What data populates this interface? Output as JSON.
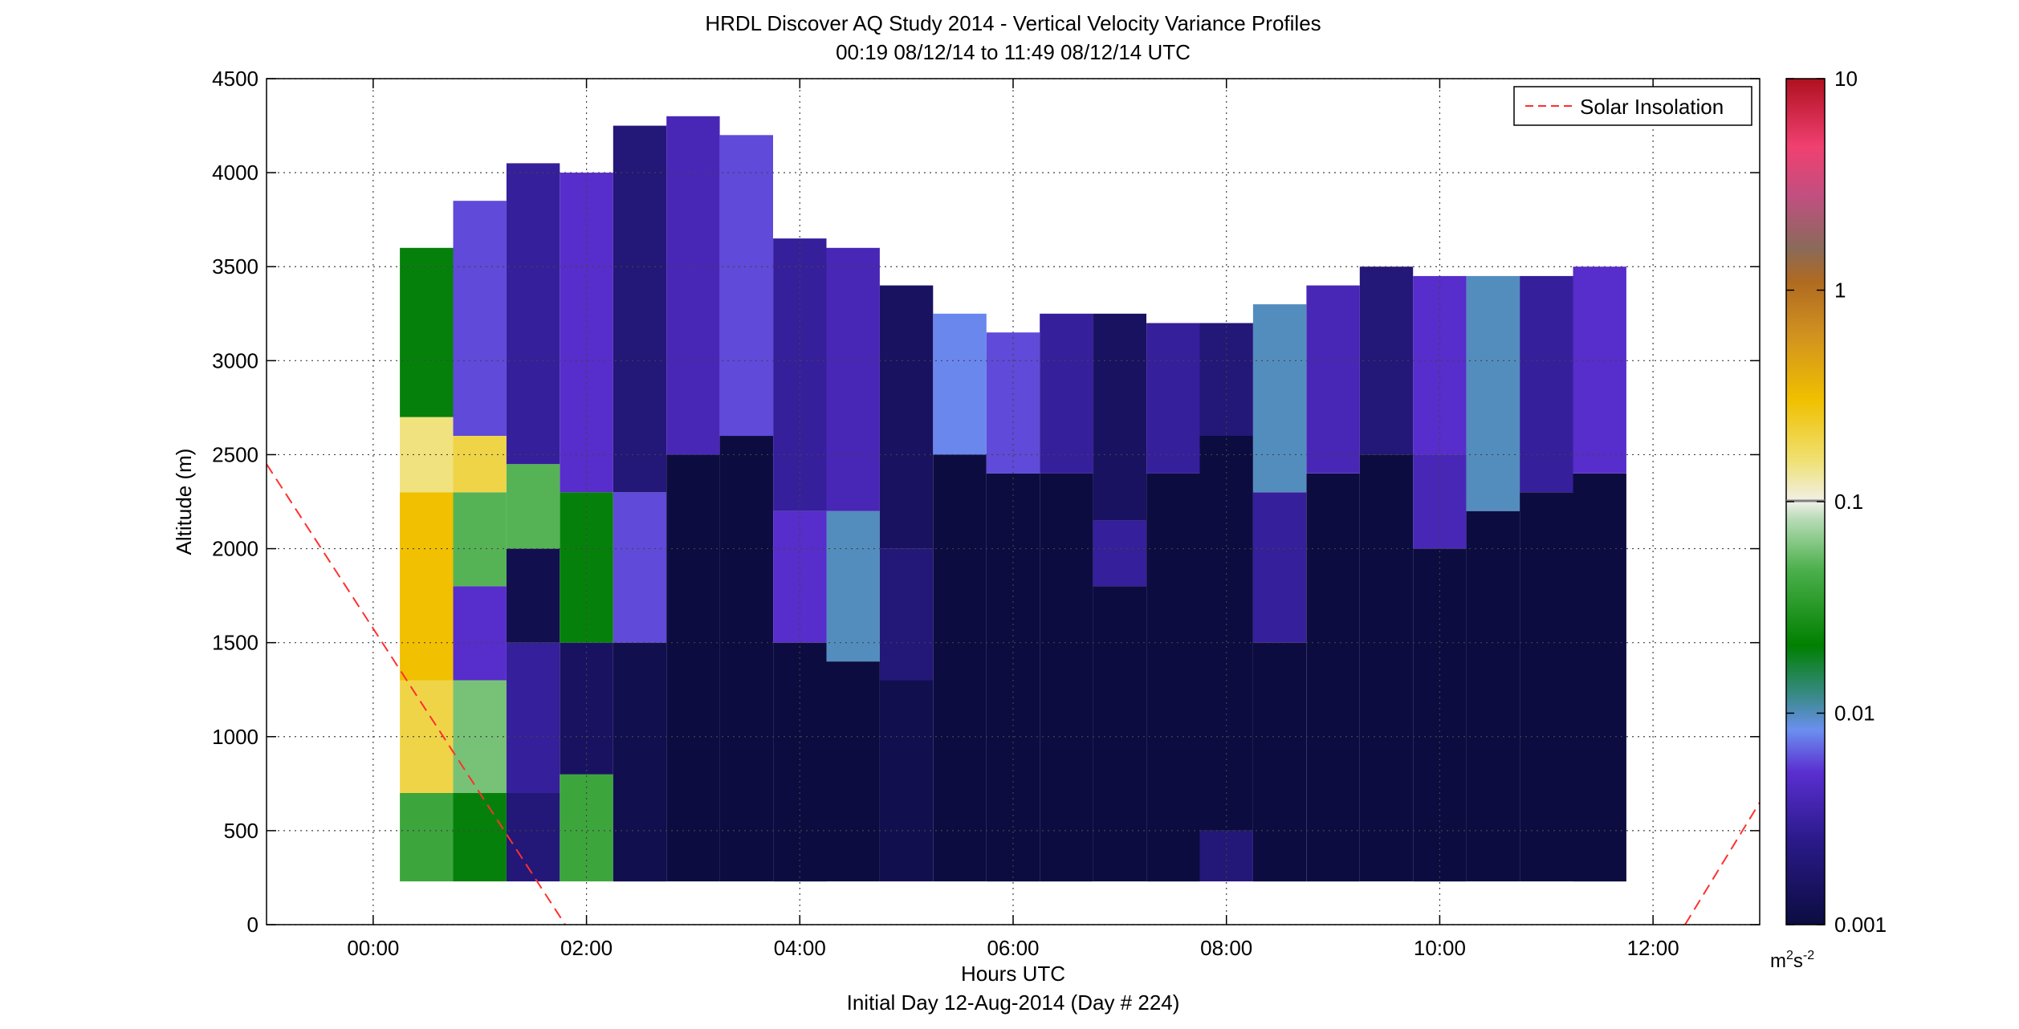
{
  "chart_data": {
    "type": "heatmap",
    "title": "HRDL Discover AQ Study 2014 - Vertical Velocity Variance Profiles",
    "subtitle": "00:19 08/12/14 to 11:49 08/12/14  UTC",
    "xlabel": "Hours UTC",
    "xlabel2": "Initial Day 12-Aug-2014 (Day # 224)",
    "ylabel": "Altitude (m)",
    "xlim": [
      -1,
      13
    ],
    "ylim": [
      0,
      4500
    ],
    "x_ticks": [
      0,
      2,
      4,
      6,
      8,
      10,
      12
    ],
    "x_tick_labels": [
      "00:00",
      "02:00",
      "04:00",
      "06:00",
      "08:00",
      "10:00",
      "12:00"
    ],
    "y_ticks": [
      0,
      500,
      1000,
      1500,
      2000,
      2500,
      3000,
      3500,
      4000,
      4500
    ],
    "y_tick_labels": [
      "0",
      "500",
      "1000",
      "1500",
      "2000",
      "2500",
      "3000",
      "3500",
      "4000",
      "4500"
    ],
    "grid": true,
    "legend": {
      "position": "top-right",
      "entries": [
        {
          "label": "Solar Insolation",
          "style": "dashed",
          "color": "#ff3030"
        }
      ]
    },
    "colorbar": {
      "scale": "log",
      "range": [
        0.001,
        10
      ],
      "ticks": [
        0.001,
        0.01,
        0.1,
        1,
        10
      ],
      "tick_labels": [
        "0.001",
        "0.01",
        "0.1",
        "1",
        "10"
      ],
      "unit_label": "m",
      "unit_sup1": "2",
      "unit_mid": "s",
      "unit_sup2": "-2"
    },
    "profile_times": [
      0.5,
      1.0,
      1.5,
      2.0,
      2.5,
      3.0,
      3.5,
      4.0,
      4.5,
      5.0,
      5.5,
      6.0,
      6.5,
      7.0,
      7.5,
      8.0,
      8.5,
      9.0,
      9.5,
      10.0,
      10.5,
      11.0,
      11.5
    ],
    "profile_tops_m": [
      3600,
      3850,
      4050,
      4000,
      4250,
      4300,
      4200,
      3650,
      3600,
      3400,
      3250,
      3150,
      3250,
      3250,
      3200,
      3200,
      3300,
      3400,
      3500,
      3450,
      3450,
      3450,
      3500
    ],
    "profile_bottom_m": 230,
    "variance_profiles": [
      {
        "t": 0.5,
        "bands": [
          {
            "from": 230,
            "to": 700,
            "v": 0.04
          },
          {
            "from": 700,
            "to": 1300,
            "v": 0.2
          },
          {
            "from": 1300,
            "to": 2300,
            "v": 0.3
          },
          {
            "from": 2300,
            "to": 2700,
            "v": 0.15
          },
          {
            "from": 2700,
            "to": 3600,
            "v": 0.02
          }
        ]
      },
      {
        "t": 1.0,
        "bands": [
          {
            "from": 230,
            "to": 700,
            "v": 0.02
          },
          {
            "from": 700,
            "to": 1300,
            "v": 0.06
          },
          {
            "from": 1300,
            "to": 1800,
            "v": 0.005
          },
          {
            "from": 1800,
            "to": 2300,
            "v": 0.05
          },
          {
            "from": 2300,
            "to": 2600,
            "v": 0.2
          },
          {
            "from": 2600,
            "to": 3850,
            "v": 0.006
          }
        ]
      },
      {
        "t": 1.5,
        "bands": [
          {
            "from": 230,
            "to": 700,
            "v": 0.002
          },
          {
            "from": 700,
            "to": 1500,
            "v": 0.003
          },
          {
            "from": 1500,
            "to": 2000,
            "v": 0.0012
          },
          {
            "from": 2000,
            "to": 2450,
            "v": 0.05
          },
          {
            "from": 2450,
            "to": 4050,
            "v": 0.003
          }
        ]
      },
      {
        "t": 2.0,
        "bands": [
          {
            "from": 230,
            "to": 800,
            "v": 0.04
          },
          {
            "from": 800,
            "to": 1500,
            "v": 0.0015
          },
          {
            "from": 1500,
            "to": 2300,
            "v": 0.02
          },
          {
            "from": 2300,
            "to": 4000,
            "v": 0.005
          }
        ]
      },
      {
        "t": 2.5,
        "bands": [
          {
            "from": 230,
            "to": 1500,
            "v": 0.0012
          },
          {
            "from": 1500,
            "to": 2300,
            "v": 0.006
          },
          {
            "from": 2300,
            "to": 4250,
            "v": 0.002
          }
        ]
      },
      {
        "t": 3.0,
        "bands": [
          {
            "from": 230,
            "to": 2500,
            "v": 0.001
          },
          {
            "from": 2500,
            "to": 4300,
            "v": 0.004
          }
        ]
      },
      {
        "t": 3.5,
        "bands": [
          {
            "from": 230,
            "to": 2600,
            "v": 0.001
          },
          {
            "from": 2600,
            "to": 4200,
            "v": 0.006
          }
        ]
      },
      {
        "t": 4.0,
        "bands": [
          {
            "from": 230,
            "to": 1500,
            "v": 0.001
          },
          {
            "from": 1500,
            "to": 2200,
            "v": 0.005
          },
          {
            "from": 2200,
            "to": 3650,
            "v": 0.003
          }
        ]
      },
      {
        "t": 4.5,
        "bands": [
          {
            "from": 230,
            "to": 1400,
            "v": 0.001
          },
          {
            "from": 1400,
            "to": 2200,
            "v": 0.01
          },
          {
            "from": 2200,
            "to": 3600,
            "v": 0.004
          }
        ]
      },
      {
        "t": 5.0,
        "bands": [
          {
            "from": 230,
            "to": 1300,
            "v": 0.0012
          },
          {
            "from": 1300,
            "to": 2000,
            "v": 0.002
          },
          {
            "from": 2000,
            "to": 3400,
            "v": 0.0015
          }
        ]
      },
      {
        "t": 5.5,
        "bands": [
          {
            "from": 230,
            "to": 2500,
            "v": 0.001
          },
          {
            "from": 2500,
            "to": 3250,
            "v": 0.008
          }
        ]
      },
      {
        "t": 6.0,
        "bands": [
          {
            "from": 230,
            "to": 2400,
            "v": 0.001
          },
          {
            "from": 2400,
            "to": 3150,
            "v": 0.006
          }
        ]
      },
      {
        "t": 6.5,
        "bands": [
          {
            "from": 230,
            "to": 2400,
            "v": 0.001
          },
          {
            "from": 2400,
            "to": 3250,
            "v": 0.003
          }
        ]
      },
      {
        "t": 7.0,
        "bands": [
          {
            "from": 230,
            "to": 1800,
            "v": 0.001
          },
          {
            "from": 1800,
            "to": 2150,
            "v": 0.003
          },
          {
            "from": 2150,
            "to": 3250,
            "v": 0.0015
          }
        ]
      },
      {
        "t": 7.5,
        "bands": [
          {
            "from": 230,
            "to": 2400,
            "v": 0.001
          },
          {
            "from": 2400,
            "to": 3200,
            "v": 0.003
          }
        ]
      },
      {
        "t": 8.0,
        "bands": [
          {
            "from": 230,
            "to": 500,
            "v": 0.002
          },
          {
            "from": 500,
            "to": 2600,
            "v": 0.001
          },
          {
            "from": 2600,
            "to": 3200,
            "v": 0.002
          }
        ]
      },
      {
        "t": 8.5,
        "bands": [
          {
            "from": 230,
            "to": 1500,
            "v": 0.001
          },
          {
            "from": 1500,
            "to": 2300,
            "v": 0.003
          },
          {
            "from": 2300,
            "to": 3300,
            "v": 0.01
          }
        ]
      },
      {
        "t": 9.0,
        "bands": [
          {
            "from": 230,
            "to": 2400,
            "v": 0.001
          },
          {
            "from": 2400,
            "to": 3400,
            "v": 0.004
          }
        ]
      },
      {
        "t": 9.5,
        "bands": [
          {
            "from": 230,
            "to": 2500,
            "v": 0.001
          },
          {
            "from": 2500,
            "to": 3500,
            "v": 0.002
          }
        ]
      },
      {
        "t": 10.0,
        "bands": [
          {
            "from": 230,
            "to": 2000,
            "v": 0.001
          },
          {
            "from": 2000,
            "to": 2500,
            "v": 0.004
          },
          {
            "from": 2500,
            "to": 3450,
            "v": 0.005
          }
        ]
      },
      {
        "t": 10.5,
        "bands": [
          {
            "from": 230,
            "to": 2200,
            "v": 0.001
          },
          {
            "from": 2200,
            "to": 3450,
            "v": 0.01
          }
        ]
      },
      {
        "t": 11.0,
        "bands": [
          {
            "from": 230,
            "to": 2300,
            "v": 0.001
          },
          {
            "from": 2300,
            "to": 3450,
            "v": 0.003
          }
        ]
      },
      {
        "t": 11.5,
        "bands": [
          {
            "from": 230,
            "to": 2400,
            "v": 0.001
          },
          {
            "from": 2400,
            "to": 3500,
            "v": 0.005
          }
        ]
      }
    ],
    "solar_insolation": {
      "color": "#ff3030",
      "segments": [
        [
          {
            "x": -1.0,
            "y": 2450
          },
          {
            "x": 1.8,
            "y": 0
          }
        ],
        [
          {
            "x": 12.3,
            "y": 0
          },
          {
            "x": 13.0,
            "y": 650
          }
        ]
      ]
    }
  }
}
